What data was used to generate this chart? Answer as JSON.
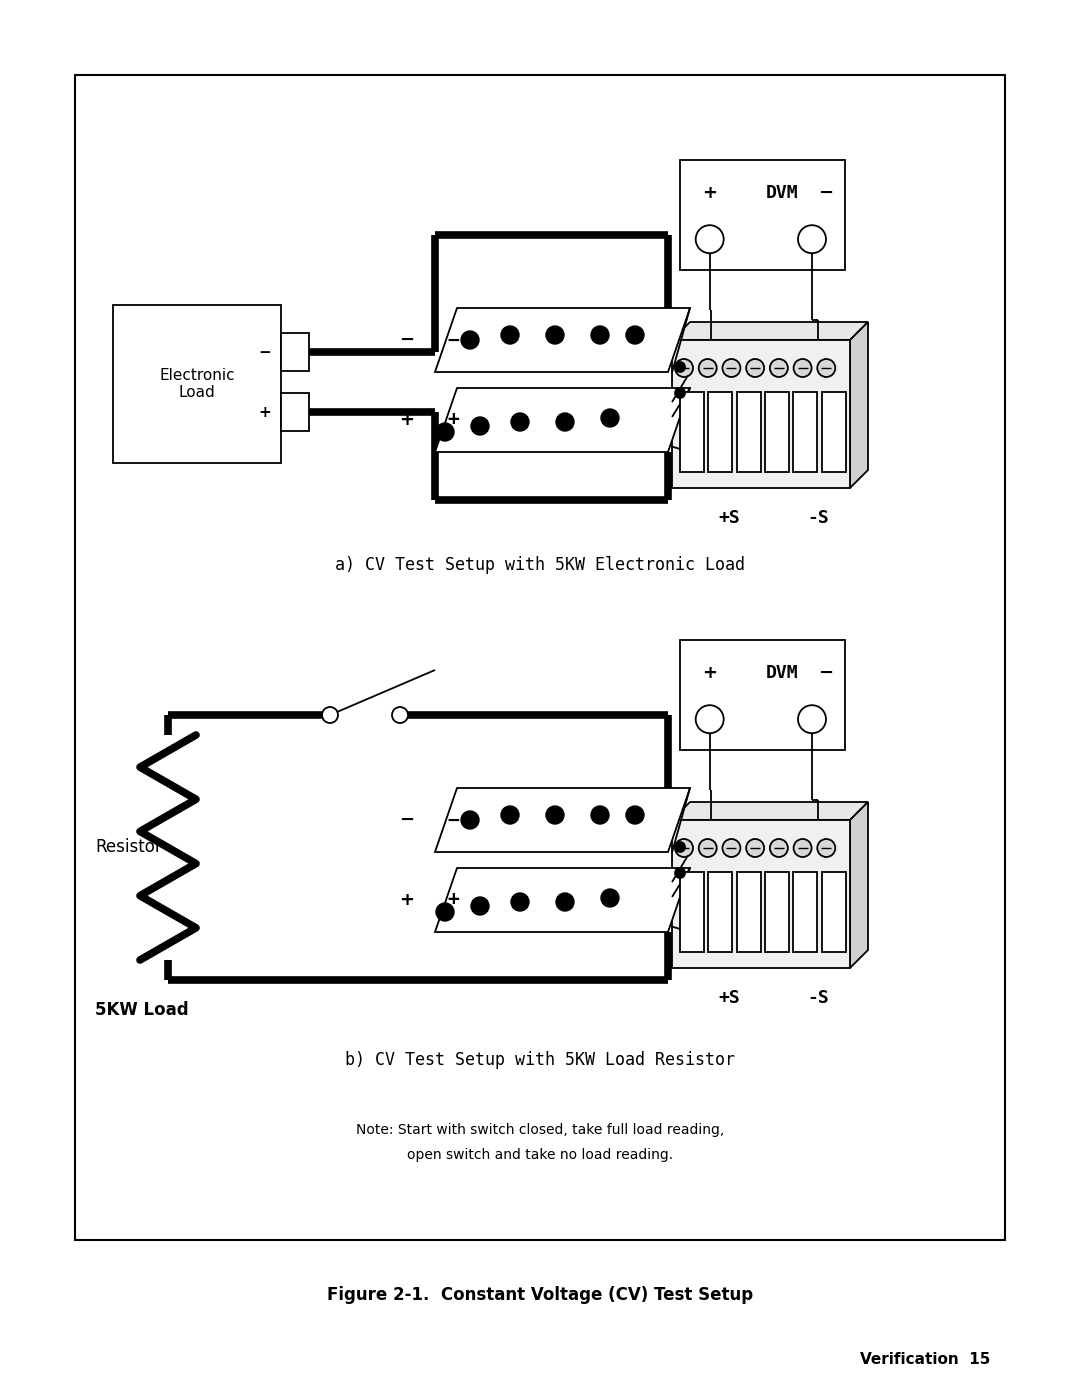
{
  "bg_color": "#ffffff",
  "line_color": "#000000",
  "thick_lw": 5.5,
  "thin_lw": 1.3,
  "figure_caption": "Figure 2-1.  Constant Voltage (CV) Test Setup",
  "figure_caption_fontsize": 12,
  "caption_a": "a) CV Test Setup with 5KW Electronic Load",
  "caption_b": "b) CV Test Setup with 5KW Load Resistor",
  "caption_fontsize": 12,
  "note_line1": "Note: Start with switch closed, take full load reading,",
  "note_line2": "open switch and take no load reading.",
  "note_fontsize": 10,
  "page_text": "Verification  15",
  "page_fontsize": 11,
  "dvm_label": "DVM",
  "plus_s_label": "+S",
  "minus_s_label": "-S",
  "electronic_load_label": "Electronic\nLoad",
  "resistor_label": "Resistor",
  "load5kw_label": "5KW Load",
  "minus_label": "−",
  "plus_label": "+"
}
